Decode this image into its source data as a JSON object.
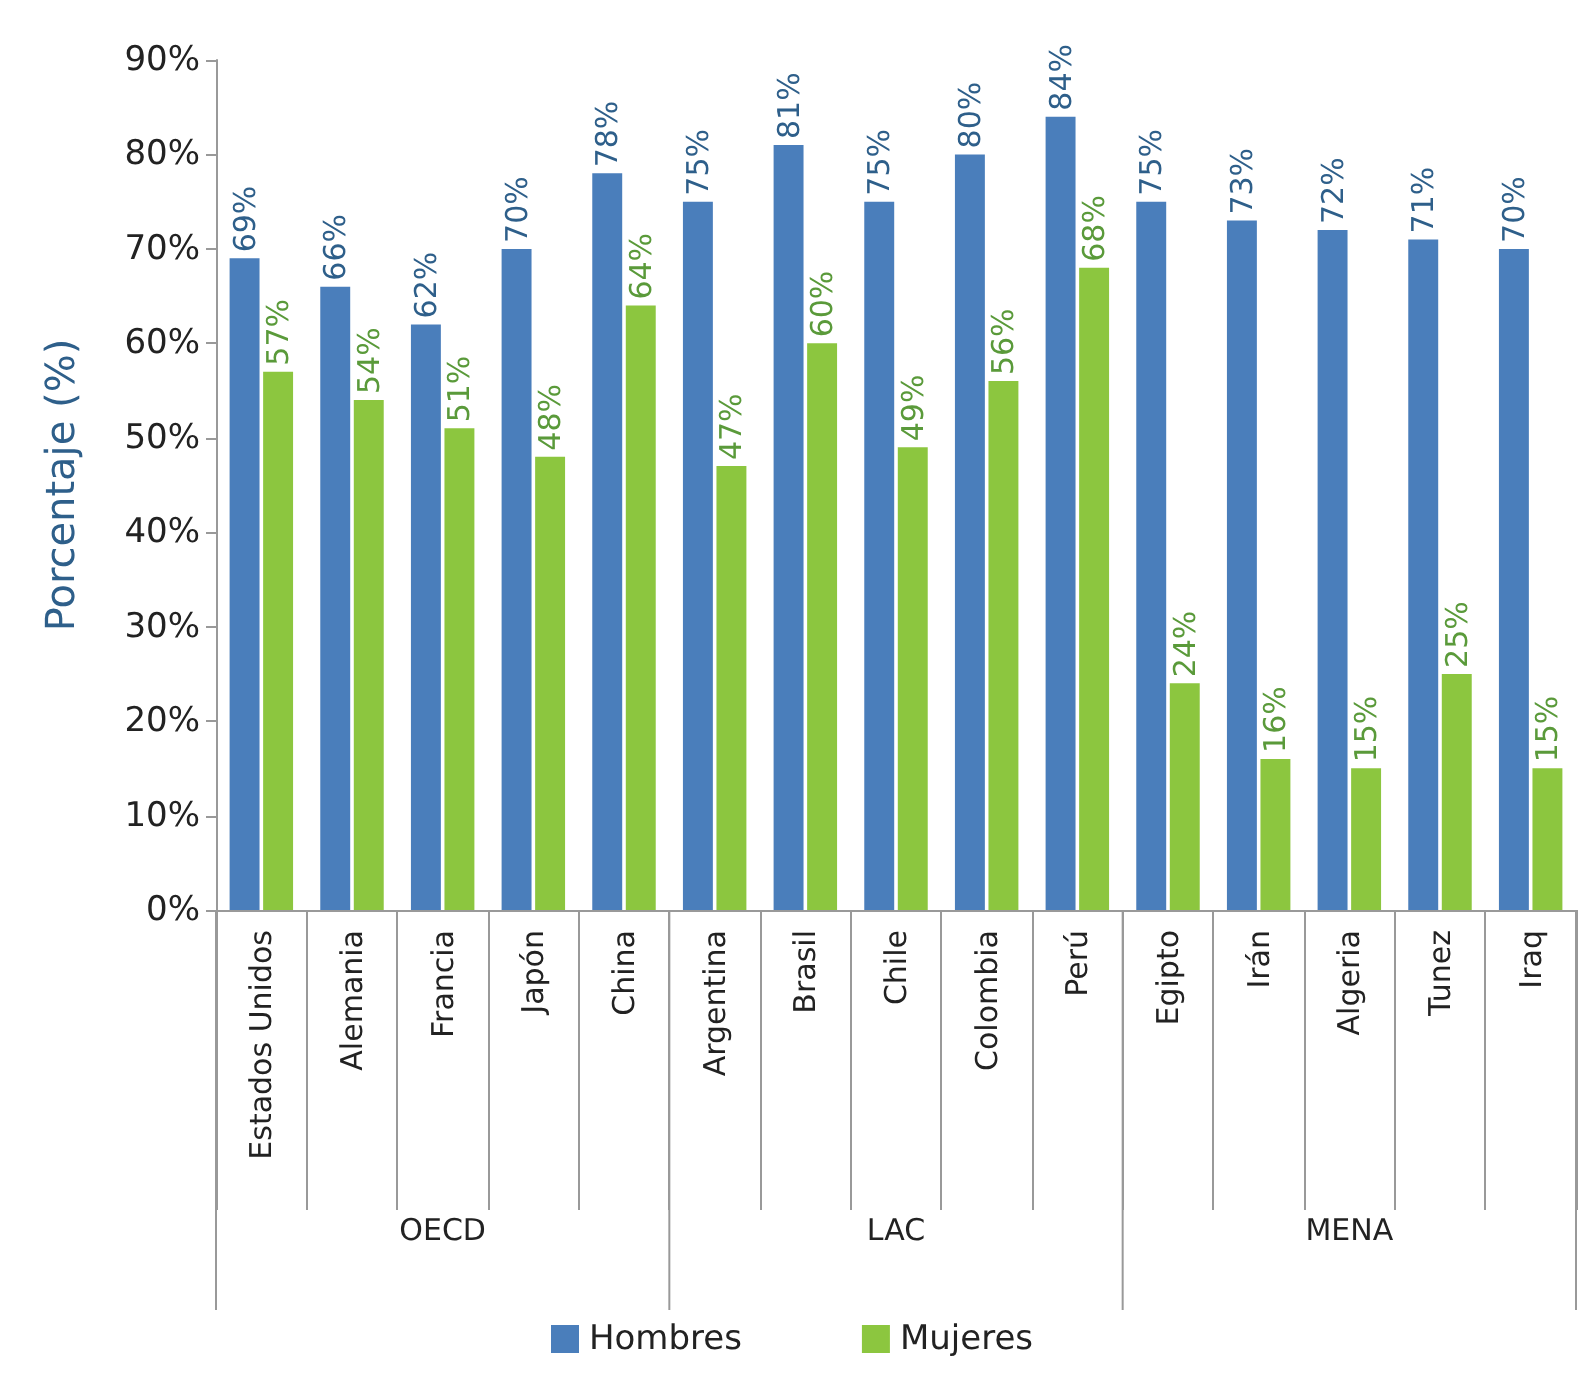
{
  "chart_data": {
    "type": "bar",
    "ylabel": "Porcentaje (%)",
    "categories": [
      "Estados Unidos",
      "Alemania",
      "Francia",
      "Japón",
      "China",
      "Argentina",
      "Brasil",
      "Chile",
      "Colombia",
      "Perú",
      "Egipto",
      "Irán",
      "Algeria",
      "Tunez",
      "Iraq"
    ],
    "series": [
      {
        "name": "Hombres",
        "color": "#4a7ebb",
        "values": [
          69,
          66,
          62,
          70,
          78,
          75,
          81,
          75,
          80,
          84,
          75,
          73,
          72,
          71,
          70
        ],
        "value_labels": [
          "69%",
          "66%",
          "62%",
          "70%",
          "78%",
          "75%",
          "81%",
          "75%",
          "80%",
          "84%",
          "75%",
          "73%",
          "72%",
          "71%",
          "70%"
        ]
      },
      {
        "name": "Mujeres",
        "color": "#8cc63f",
        "values": [
          57,
          54,
          51,
          48,
          64,
          47,
          60,
          49,
          56,
          68,
          24,
          16,
          15,
          25,
          15
        ],
        "value_labels": [
          "57%",
          "54%",
          "51%",
          "48%",
          "64%",
          "47%",
          "60%",
          "49%",
          "56%",
          "68%",
          "24%",
          "16%",
          "15%",
          "25%",
          "15%"
        ]
      }
    ],
    "ylim": [
      0,
      90
    ],
    "yticks": [
      {
        "value": 0,
        "label": "0%"
      },
      {
        "value": 10,
        "label": "10%"
      },
      {
        "value": 20,
        "label": "20%"
      },
      {
        "value": 30,
        "label": "30%"
      },
      {
        "value": 40,
        "label": "40%"
      },
      {
        "value": 50,
        "label": "50%"
      },
      {
        "value": 60,
        "label": "60%"
      },
      {
        "value": 70,
        "label": "70%"
      },
      {
        "value": 80,
        "label": "80%"
      },
      {
        "value": 90,
        "label": "90%"
      }
    ],
    "annotations": [
      "OECD",
      "LAC",
      "MENA"
    ],
    "grid": false,
    "legend": "bottom"
  }
}
